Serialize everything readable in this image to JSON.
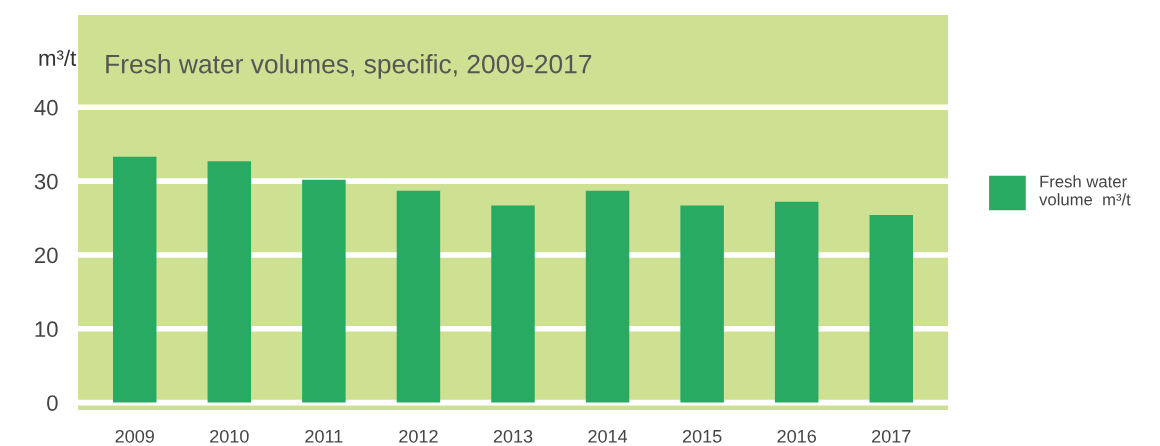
{
  "chart_data": {
    "type": "bar",
    "title": "Fresh water volumes, specific, 2009-2017",
    "ylabel": "m³/t",
    "categories": [
      "2009",
      "2010",
      "2011",
      "2012",
      "2013",
      "2014",
      "2015",
      "2016",
      "2017"
    ],
    "series": [
      {
        "name": "Fresh water\nvolume  m³/t",
        "color": "#29aa63",
        "values": [
          33.3,
          32.7,
          30.2,
          28.7,
          26.7,
          28.7,
          26.7,
          27.2,
          25.4
        ]
      }
    ],
    "ylim": [
      -1,
      52.5
    ],
    "yticks": [
      0,
      10,
      20,
      30,
      40
    ],
    "grid": "y",
    "legend": "right"
  }
}
